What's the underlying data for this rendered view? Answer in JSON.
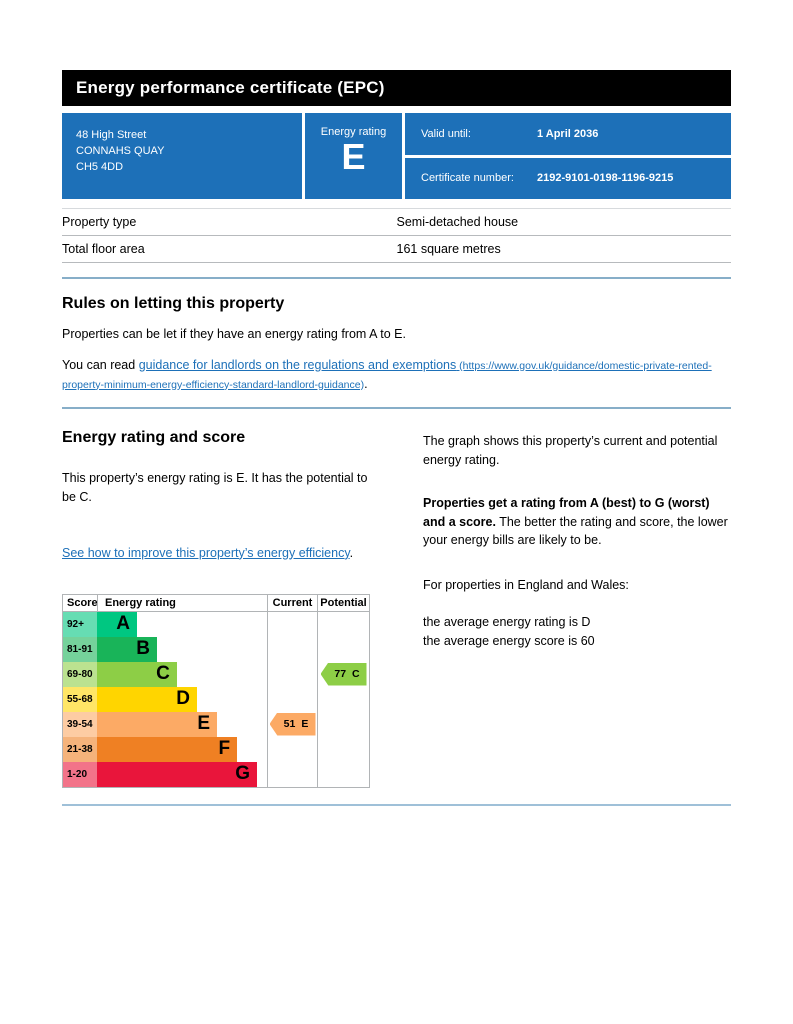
{
  "header": {
    "title": "Energy performance certificate (EPC)"
  },
  "colors": {
    "brand_blue": "#1d70b8",
    "rule_blue": "#87aec8",
    "border_gray": "#b1b4b6"
  },
  "summary": {
    "address_lines": [
      "48 High Street",
      "CONNAHS QUAY",
      "CH5 4DD"
    ],
    "energy_rating_label": "Energy rating",
    "energy_rating": "E",
    "valid_until_label": "Valid until:",
    "valid_until": "1 April 2036",
    "certificate_number_label": "Certificate number:",
    "certificate_number": "2192-9101-0198-1196-9215"
  },
  "property_details": {
    "rows": [
      {
        "label": "Property type",
        "value": "Semi-detached house"
      },
      {
        "label": "Total floor area",
        "value": "161 square metres"
      }
    ]
  },
  "rules_section": {
    "heading": "Rules on letting this property",
    "paragraph1": "Properties can be let if they have an energy rating from A to E.",
    "paragraph2_prefix": "You can read ",
    "link_text": "guidance for landlords on the regulations and exemptions",
    "link_url_text": " (https://www.gov.uk/guidance/domestic-private-rented-property-minimum-energy-efficiency-standard-landlord-guidance)",
    "paragraph2_suffix": "."
  },
  "rating_section": {
    "heading": "Energy rating and score",
    "intro": "This property’s energy rating is E. It has the potential to be C.",
    "improve_link": "See how to improve this property’s energy efficiency",
    "improve_link_suffix": ".",
    "right": {
      "p1": "The graph shows this property’s current and potential energy rating.",
      "p2_bold": "Properties get a rating from A (best) to G (worst) and a score.",
      "p2_rest": " The better the rating and score, the lower your energy bills are likely to be.",
      "p3": "For properties in England and Wales:",
      "p4_line1": "the average energy rating is D",
      "p4_line2": "the average energy score is 60"
    }
  },
  "chart_data": {
    "type": "bar",
    "title": "Energy rating and score graph",
    "headers": {
      "score": "Score",
      "rating": "Energy rating",
      "current": "Current",
      "potential": "Potential"
    },
    "bands": [
      {
        "range": "92+",
        "letter": "A",
        "color": "#00c781",
        "tint": "#66ddb3",
        "bar_width_pct": 23.5
      },
      {
        "range": "81-91",
        "letter": "B",
        "color": "#19b459",
        "tint": "#75d29b",
        "bar_width_pct": 35.3
      },
      {
        "range": "69-80",
        "letter": "C",
        "color": "#8dce46",
        "tint": "#bbe290",
        "bar_width_pct": 47.0
      },
      {
        "range": "55-68",
        "letter": "D",
        "color": "#ffd500",
        "tint": "#ffe666",
        "bar_width_pct": 58.8
      },
      {
        "range": "39-54",
        "letter": "E",
        "color": "#fcaa65",
        "tint": "#fdcca3",
        "bar_width_pct": 70.6
      },
      {
        "range": "21-38",
        "letter": "F",
        "color": "#ef8023",
        "tint": "#f5b37b",
        "bar_width_pct": 82.4
      },
      {
        "range": "1-20",
        "letter": "G",
        "color": "#e9153b",
        "tint": "#f27389",
        "bar_width_pct": 94.1
      }
    ],
    "current": {
      "value": "51",
      "band": "E",
      "row_index": 4,
      "color": "#fcaa65"
    },
    "potential": {
      "value": "77",
      "band": "C",
      "row_index": 2,
      "color": "#8dce46"
    }
  }
}
